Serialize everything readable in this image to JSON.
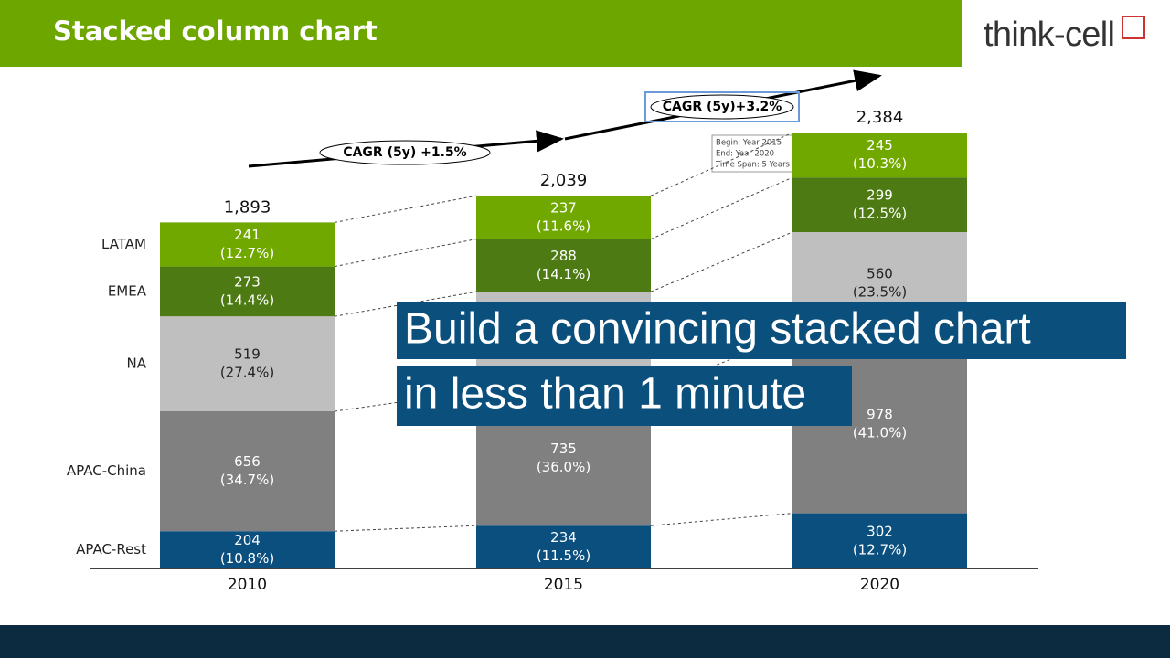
{
  "chart_data": {
    "type": "stacked-bar",
    "title": "Stacked column chart",
    "categories": [
      "2010",
      "2015",
      "2020"
    ],
    "series": [
      {
        "name": "APAC-Rest",
        "color": "#0b4f7e",
        "text_color": "#ffffff",
        "values": [
          204,
          234,
          302
        ],
        "share_labels": [
          "(10.8%)",
          "(11.5%)",
          "(12.7%)"
        ]
      },
      {
        "name": "APAC-China",
        "color": "#808080",
        "text_color": "#ffffff",
        "values": [
          656,
          735,
          978
        ],
        "share_labels": [
          "(34.7%)",
          "(36.0%)",
          "(41.0%)"
        ]
      },
      {
        "name": "NA",
        "color": "#bfbfbf",
        "text_color": "#222222",
        "values": [
          519,
          545,
          560
        ],
        "share_labels": [
          "(27.4%)",
          null,
          "(23.5%)"
        ]
      },
      {
        "name": "EMEA",
        "color": "#4d7a12",
        "text_color": "#ffffff",
        "values": [
          273,
          288,
          299
        ],
        "share_labels": [
          "(14.4%)",
          "(14.1%)",
          "(12.5%)"
        ]
      },
      {
        "name": "LATAM",
        "color": "#70a800",
        "text_color": "#ffffff",
        "values": [
          241,
          237,
          245
        ],
        "share_labels": [
          "(12.7%)",
          "(11.6%)",
          "(10.3%)"
        ]
      }
    ],
    "totals": [
      1893,
      2039,
      2384
    ],
    "total_labels": [
      "1,893",
      "2,039",
      "2,384"
    ],
    "annotations": [
      "CAGR (5y) +1.5%",
      "CAGR (5y)+3.2%"
    ],
    "tooltip": [
      "Begin: Year 2015",
      "End: Year 2020",
      "Time Span: 5 Years"
    ]
  },
  "banner": [
    "Build a convincing stacked chart",
    "in less than 1 minute"
  ],
  "logo": "think-cell"
}
